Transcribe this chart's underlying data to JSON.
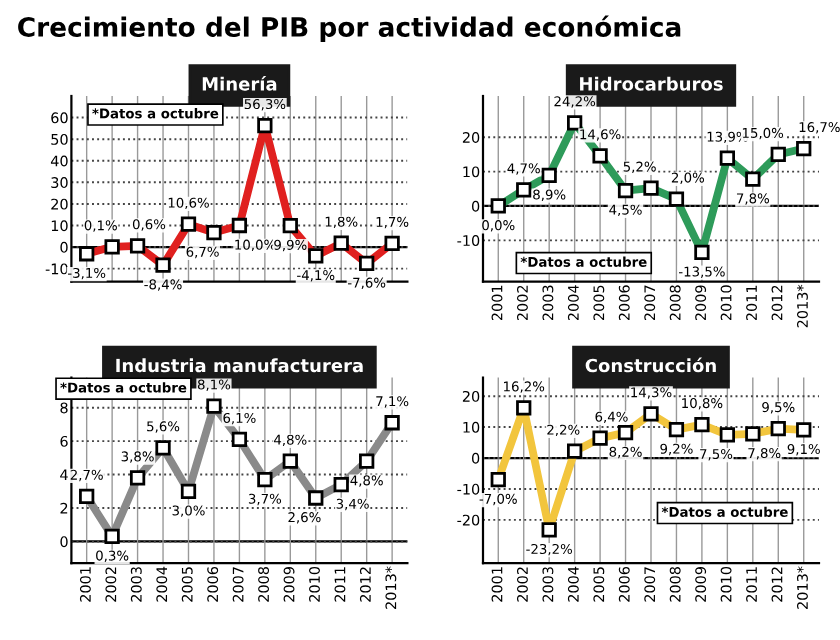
{
  "chart_data": [
    {
      "type": "line",
      "title": "Minería",
      "annotations": [
        "Crecimiento del PIB por actividad económica",
        "*Datos a octubre"
      ],
      "categories": [
        null,
        null,
        null,
        null,
        null,
        null,
        null,
        null,
        null,
        null,
        null,
        null,
        null
      ],
      "series": [
        {
          "color": "#e0201f",
          "values": [
            -3.1,
            0.1,
            0.6,
            -8.4,
            10.6,
            6.7,
            10.0,
            56.3,
            9.9,
            -4.1,
            1.8,
            -7.6,
            1.7
          ],
          "value_labels": [
            "-3,1%",
            "0,1%",
            "0,6%",
            "-8,4%",
            "10,6%",
            "6,7%",
            "10,0%",
            "56,3%",
            "9,9%",
            "-4,1%",
            "1,8%",
            "-7,6%",
            "1,7%"
          ]
        }
      ],
      "ylim": [
        -16,
        70
      ],
      "yticks": [
        -10,
        0,
        10,
        20,
        30,
        40,
        50,
        60
      ],
      "grid": true,
      "marker": "square",
      "line_style": "solid"
    },
    {
      "type": "line",
      "title": "Hidrocarburos",
      "annotations": [
        "*Datos a octubre"
      ],
      "categories": [
        "2001",
        "2002",
        "2003",
        "2004",
        "2005",
        "2006",
        "2007",
        "2008",
        "2009",
        "2010",
        "2011",
        "2012",
        "2013*"
      ],
      "series": [
        {
          "color": "#2e9b5a",
          "values": [
            0.0,
            4.7,
            8.9,
            24.2,
            14.6,
            4.5,
            5.2,
            2.0,
            -13.5,
            13.9,
            7.8,
            15.0,
            16.7
          ],
          "value_labels": [
            "0,0%",
            "4,7%",
            "8,9%",
            "24,2%",
            "14,6%",
            "4,5%",
            "5,2%",
            "2,0%",
            "-13,5%",
            "13,9%",
            "7,8%",
            "15,0%",
            "16,7%"
          ]
        }
      ],
      "ylim": [
        -22,
        32
      ],
      "yticks": [
        -10,
        0,
        10,
        20
      ],
      "grid": true,
      "marker": "square",
      "line_style": "solid"
    },
    {
      "type": "line",
      "title": "Industria manufacturera",
      "annotations": [
        "*Datos a octubre"
      ],
      "categories": [
        "2001",
        "2002",
        "2003",
        "2004",
        "2005",
        "2006",
        "2007",
        "2008",
        "2009",
        "2010",
        "2011",
        "2012",
        "2013*"
      ],
      "series": [
        {
          "color": "#8a8a8a",
          "values": [
            2.7,
            0.3,
            3.8,
            5.6,
            3.0,
            8.1,
            6.1,
            3.7,
            4.8,
            2.6,
            3.4,
            4.8,
            7.1
          ],
          "value_labels": [
            "2,7%",
            "0,3%",
            "3,8%",
            "5,6%",
            "3,0%",
            "8,1%",
            "6,1%",
            "3,7%",
            "4,8%",
            "2,6%",
            "3,4%",
            "4,8%",
            "7,1%"
          ]
        }
      ],
      "ylim": [
        -1.3,
        9.8
      ],
      "yticks": [
        0,
        2,
        4,
        6,
        8
      ],
      "grid": true,
      "marker": "square",
      "line_style": "solid"
    },
    {
      "type": "line",
      "title": "Construcción",
      "annotations": [
        "*Datos a octubre"
      ],
      "categories": [
        "2001",
        "2002",
        "2003",
        "2004",
        "2005",
        "2006",
        "2007",
        "2008",
        "2009",
        "2010",
        "2011",
        "2012",
        "2013*"
      ],
      "series": [
        {
          "color": "#f2c53d",
          "values": [
            -7.0,
            16.2,
            -23.2,
            2.2,
            6.4,
            8.2,
            14.3,
            9.2,
            10.8,
            7.5,
            7.8,
            9.5,
            9.1
          ],
          "value_labels": [
            "-7,0%",
            "16,2%",
            "-23,2%",
            "2,2%",
            "6,4%",
            "8,2%",
            "14,3%",
            "9,2%",
            "10,8%",
            "7,5%",
            "7,8%",
            "9,5%",
            "9,1%"
          ]
        }
      ],
      "ylim": [
        -34,
        26
      ],
      "yticks": [
        -20,
        -10,
        0,
        10,
        20
      ],
      "grid": true,
      "marker": "square",
      "line_style": "solid"
    }
  ]
}
